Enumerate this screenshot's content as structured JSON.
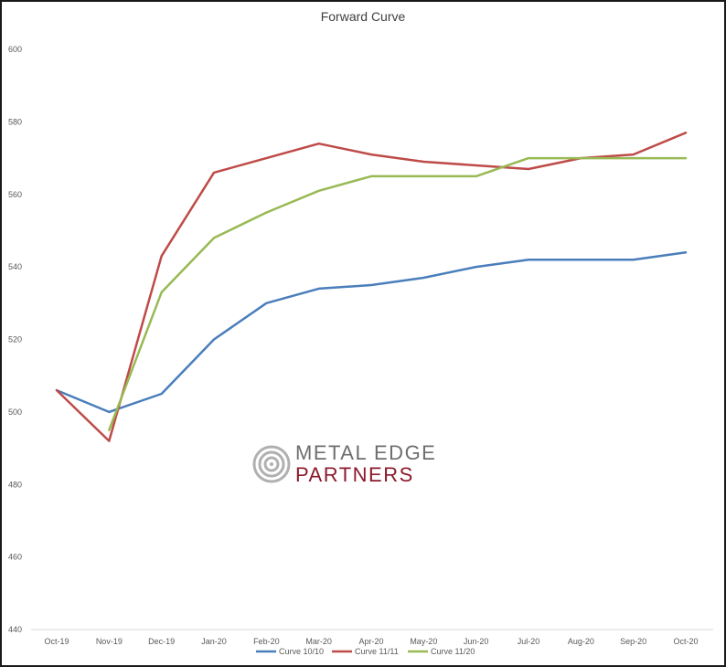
{
  "chart_data": {
    "type": "line",
    "title": "Forward Curve",
    "categories": [
      "Oct-19",
      "Nov-19",
      "Dec-19",
      "Jan-20",
      "Feb-20",
      "Mar-20",
      "Apr-20",
      "May-20",
      "Jun-20",
      "Jul-20",
      "Aug-20",
      "Sep-20",
      "Oct-20"
    ],
    "ylim": [
      440,
      600
    ],
    "yticks": [
      440,
      460,
      480,
      500,
      520,
      540,
      560,
      580,
      600
    ],
    "grid": false,
    "legend_position": "bottom",
    "series": [
      {
        "name": "Curve 10/10",
        "color": "#4a7ebb",
        "values": [
          506,
          500,
          505,
          520,
          530,
          534,
          535,
          537,
          540,
          542,
          542,
          542,
          544
        ]
      },
      {
        "name": "Curve 11/11",
        "color": "#be4b48",
        "values": [
          506,
          492,
          543,
          566,
          570,
          574,
          571,
          569,
          568,
          567,
          570,
          571,
          577
        ]
      },
      {
        "name": "Curve 11/20",
        "color": "#98b954",
        "values": [
          null,
          495,
          533,
          548,
          555,
          561,
          565,
          565,
          565,
          570,
          570,
          570,
          570
        ]
      }
    ]
  },
  "watermark": {
    "line1": "METAL EDGE",
    "line2": "PARTNERS",
    "icon": "concentric-circles-icon"
  }
}
